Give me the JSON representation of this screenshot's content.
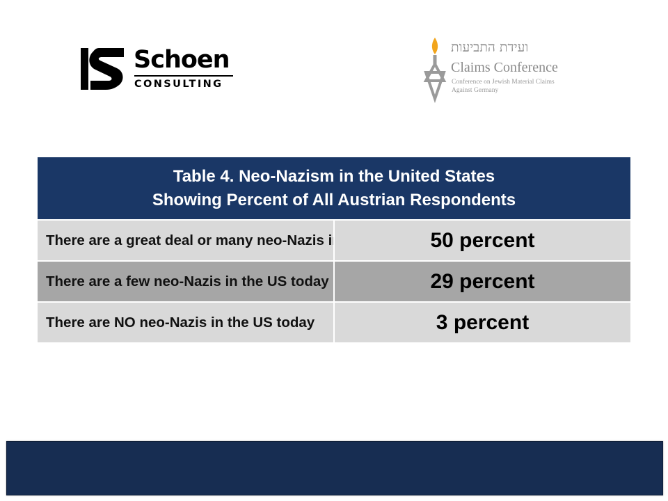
{
  "logos": {
    "schoen": {
      "name": "Schoen",
      "subtitle": "CONSULTING"
    },
    "claims_conference": {
      "hebrew": "ועידת התביעות",
      "name": "Claims Conference",
      "description_line1": "Conference on Jewish Material Claims",
      "description_line2": "Against Germany",
      "icon": "candle-star-icon"
    }
  },
  "table": {
    "title_line1": "Table 4. Neo-Nazism in the United States",
    "title_line2": "Showing Percent of All Austrian Respondents",
    "rows": [
      {
        "label": "There are a great deal or many neo-Nazis in the US today",
        "value": "50 percent"
      },
      {
        "label": "There are a few neo-Nazis in the US today",
        "value": "29 percent"
      },
      {
        "label": "There are NO neo-Nazis in the US today",
        "value": "3 percent"
      }
    ]
  },
  "colors": {
    "header_bg": "#1a3766",
    "row_light": "#d9d9d9",
    "row_dark": "#a6a6a6",
    "footer_bg": "#172d52",
    "claims_gold": "#f2a51c",
    "claims_gray": "#8a8a8a"
  }
}
